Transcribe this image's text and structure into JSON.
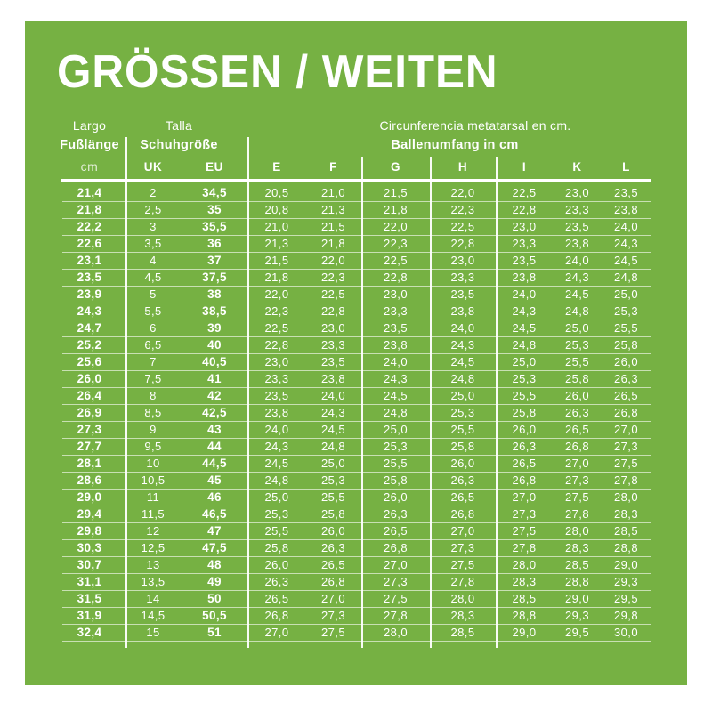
{
  "title": "GRÖSSEN / WEITEN",
  "colors": {
    "panel_green": "#76b143",
    "text_white": "#ffffff",
    "page_background": "#ffffff"
  },
  "table": {
    "group_headers": {
      "length_top": "Largo",
      "length_bottom": "Fußlänge",
      "size_top": "Talla",
      "size_bottom": "Schuhgröße",
      "girth_top": "Circunferencia metatarsal en cm.",
      "girth_bottom": "Ballenumfang in cm"
    },
    "sub_headers": [
      "cm",
      "UK",
      "EU",
      "E",
      "F",
      "G",
      "H",
      "I",
      "K",
      "L"
    ],
    "column_keys": [
      "length-cm",
      "uk",
      "eu",
      "e",
      "f",
      "g",
      "h",
      "i",
      "k",
      "l"
    ]
  },
  "chart_data": {
    "type": "table",
    "title": "GRÖSSEN / WEITEN",
    "columns": [
      "Largo Fußlänge cm",
      "Talla Schuhgröße UK",
      "Talla Schuhgröße EU",
      "E",
      "F",
      "G",
      "H",
      "I",
      "K",
      "L"
    ],
    "notes": "Width columns E–L give Circunferencia metatarsal en cm. / Ballenumfang in cm",
    "rows": [
      [
        "21,4",
        "2",
        "34,5",
        "20,5",
        "21,0",
        "21,5",
        "22,0",
        "22,5",
        "23,0",
        "23,5"
      ],
      [
        "21,8",
        "2,5",
        "35",
        "20,8",
        "21,3",
        "21,8",
        "22,3",
        "22,8",
        "23,3",
        "23,8"
      ],
      [
        "22,2",
        "3",
        "35,5",
        "21,0",
        "21,5",
        "22,0",
        "22,5",
        "23,0",
        "23,5",
        "24,0"
      ],
      [
        "22,6",
        "3,5",
        "36",
        "21,3",
        "21,8",
        "22,3",
        "22,8",
        "23,3",
        "23,8",
        "24,3"
      ],
      [
        "23,1",
        "4",
        "37",
        "21,5",
        "22,0",
        "22,5",
        "23,0",
        "23,5",
        "24,0",
        "24,5"
      ],
      [
        "23,5",
        "4,5",
        "37,5",
        "21,8",
        "22,3",
        "22,8",
        "23,3",
        "23,8",
        "24,3",
        "24,8"
      ],
      [
        "23,9",
        "5",
        "38",
        "22,0",
        "22,5",
        "23,0",
        "23,5",
        "24,0",
        "24,5",
        "25,0"
      ],
      [
        "24,3",
        "5,5",
        "38,5",
        "22,3",
        "22,8",
        "23,3",
        "23,8",
        "24,3",
        "24,8",
        "25,3"
      ],
      [
        "24,7",
        "6",
        "39",
        "22,5",
        "23,0",
        "23,5",
        "24,0",
        "24,5",
        "25,0",
        "25,5"
      ],
      [
        "25,2",
        "6,5",
        "40",
        "22,8",
        "23,3",
        "23,8",
        "24,3",
        "24,8",
        "25,3",
        "25,8"
      ],
      [
        "25,6",
        "7",
        "40,5",
        "23,0",
        "23,5",
        "24,0",
        "24,5",
        "25,0",
        "25,5",
        "26,0"
      ],
      [
        "26,0",
        "7,5",
        "41",
        "23,3",
        "23,8",
        "24,3",
        "24,8",
        "25,3",
        "25,8",
        "26,3"
      ],
      [
        "26,4",
        "8",
        "42",
        "23,5",
        "24,0",
        "24,5",
        "25,0",
        "25,5",
        "26,0",
        "26,5"
      ],
      [
        "26,9",
        "8,5",
        "42,5",
        "23,8",
        "24,3",
        "24,8",
        "25,3",
        "25,8",
        "26,3",
        "26,8"
      ],
      [
        "27,3",
        "9",
        "43",
        "24,0",
        "24,5",
        "25,0",
        "25,5",
        "26,0",
        "26,5",
        "27,0"
      ],
      [
        "27,7",
        "9,5",
        "44",
        "24,3",
        "24,8",
        "25,3",
        "25,8",
        "26,3",
        "26,8",
        "27,3"
      ],
      [
        "28,1",
        "10",
        "44,5",
        "24,5",
        "25,0",
        "25,5",
        "26,0",
        "26,5",
        "27,0",
        "27,5"
      ],
      [
        "28,6",
        "10,5",
        "45",
        "24,8",
        "25,3",
        "25,8",
        "26,3",
        "26,8",
        "27,3",
        "27,8"
      ],
      [
        "29,0",
        "11",
        "46",
        "25,0",
        "25,5",
        "26,0",
        "26,5",
        "27,0",
        "27,5",
        "28,0"
      ],
      [
        "29,4",
        "11,5",
        "46,5",
        "25,3",
        "25,8",
        "26,3",
        "26,8",
        "27,3",
        "27,8",
        "28,3"
      ],
      [
        "29,8",
        "12",
        "47",
        "25,5",
        "26,0",
        "26,5",
        "27,0",
        "27,5",
        "28,0",
        "28,5"
      ],
      [
        "30,3",
        "12,5",
        "47,5",
        "25,8",
        "26,3",
        "26,8",
        "27,3",
        "27,8",
        "28,3",
        "28,8"
      ],
      [
        "30,7",
        "13",
        "48",
        "26,0",
        "26,5",
        "27,0",
        "27,5",
        "28,0",
        "28,5",
        "29,0"
      ],
      [
        "31,1",
        "13,5",
        "49",
        "26,3",
        "26,8",
        "27,3",
        "27,8",
        "28,3",
        "28,8",
        "29,3"
      ],
      [
        "31,5",
        "14",
        "50",
        "26,5",
        "27,0",
        "27,5",
        "28,0",
        "28,5",
        "29,0",
        "29,5"
      ],
      [
        "31,9",
        "14,5",
        "50,5",
        "26,8",
        "27,3",
        "27,8",
        "28,3",
        "28,8",
        "29,3",
        "29,8"
      ],
      [
        "32,4",
        "15",
        "51",
        "27,0",
        "27,5",
        "28,0",
        "28,5",
        "29,0",
        "29,5",
        "30,0"
      ]
    ]
  }
}
